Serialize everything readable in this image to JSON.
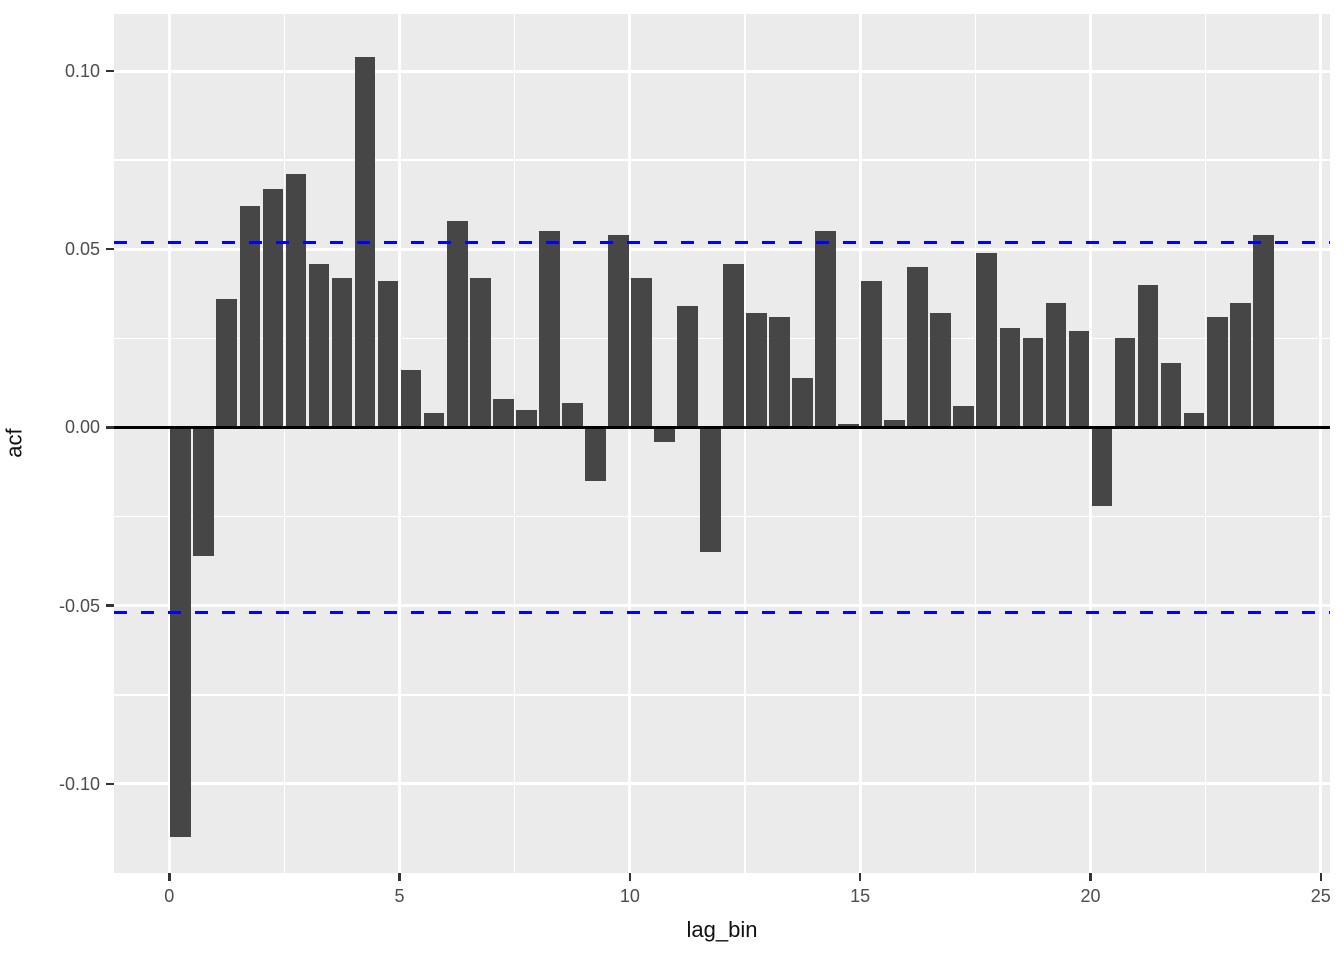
{
  "figure": {
    "background": "#ffffff",
    "panel_background": "#EBEBEB"
  },
  "chart_data": {
    "type": "bar",
    "title": "",
    "xlabel": "lag_bin",
    "ylabel": "acf",
    "legend": "none",
    "grid": true,
    "bin_width": 0.5,
    "bar_display_width": 0.45,
    "x_bin_centers": [
      0.25,
      0.75,
      1.25,
      1.75,
      2.25,
      2.75,
      3.25,
      3.75,
      4.25,
      4.75,
      5.25,
      5.75,
      6.25,
      6.75,
      7.25,
      7.75,
      8.25,
      8.75,
      9.25,
      9.75,
      10.25,
      10.75,
      11.25,
      11.75,
      12.25,
      12.75,
      13.25,
      13.75,
      14.25,
      14.75,
      15.25,
      15.75,
      16.25,
      16.75,
      17.25,
      17.75,
      18.25,
      18.75,
      19.25,
      19.75,
      20.25,
      20.75,
      21.25,
      21.75,
      22.25,
      22.75,
      23.25,
      23.75
    ],
    "values": [
      -0.115,
      -0.036,
      0.036,
      0.062,
      0.067,
      0.071,
      0.046,
      0.042,
      0.104,
      0.041,
      0.016,
      0.004,
      0.058,
      0.042,
      0.008,
      0.005,
      0.055,
      0.007,
      -0.015,
      0.054,
      0.042,
      -0.004,
      0.034,
      -0.035,
      0.046,
      0.032,
      0.031,
      0.014,
      0.055,
      0.001,
      0.041,
      0.002,
      0.045,
      0.032,
      0.006,
      0.049,
      0.028,
      0.025,
      0.035,
      0.027,
      -0.022,
      0.025,
      0.04,
      0.018,
      0.004,
      0.031,
      0.035,
      0.054
    ],
    "zero_line": 0,
    "confidence_lines": [
      0.052,
      -0.052
    ],
    "x_breaks": [
      0,
      5,
      10,
      15,
      20,
      25
    ],
    "x_tick_labels": [
      "0",
      "5",
      "10",
      "15",
      "20",
      "25"
    ],
    "x_minor_breaks": [
      2.5,
      7.5,
      12.5,
      17.5,
      22.5
    ],
    "y_breaks": [
      0.1,
      0.05,
      0.0,
      -0.05,
      -0.1
    ],
    "y_tick_labels": [
      "0.10",
      "0.05",
      "0.00",
      "-0.05",
      "-0.10"
    ],
    "y_minor_breaks": [
      0.075,
      0.025,
      -0.025,
      -0.075
    ],
    "xlim": [
      -1.2,
      25.2
    ],
    "ylim": [
      -0.125,
      0.116
    ],
    "colors": {
      "bar": "#464646",
      "confidence_line": "#0000FF",
      "zero_line": "#000000",
      "grid_major": "#FFFFFF",
      "grid_minor": "#FFFFFF",
      "tick": "#333333",
      "tick_label": "#4D4D4D",
      "axis_title": "#111111"
    }
  }
}
